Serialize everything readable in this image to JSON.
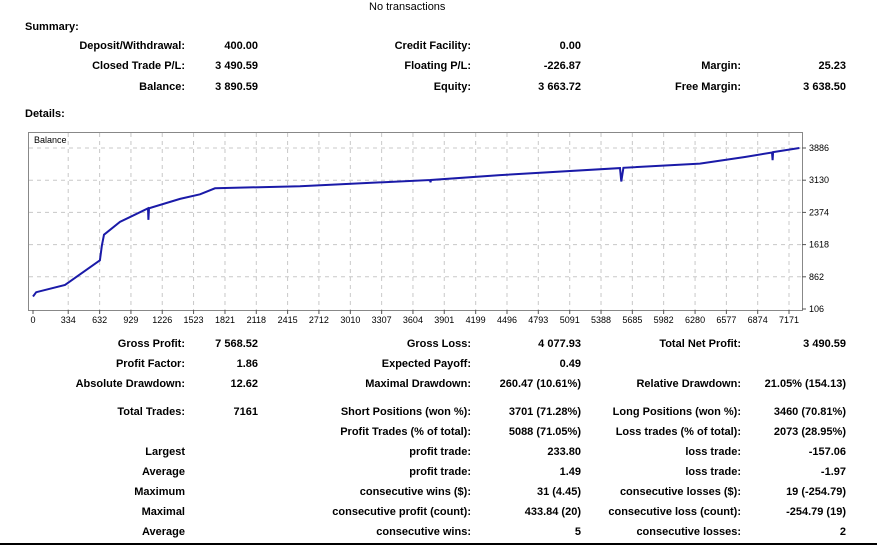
{
  "header": {
    "top_text": "No transactions"
  },
  "summary": {
    "title": "Summary:",
    "rows": [
      [
        {
          "label": "Deposit/Withdrawal:",
          "value": "400.00"
        },
        {
          "label": "Credit Facility:",
          "value": "0.00"
        },
        {
          "label": "",
          "value": ""
        }
      ],
      [
        {
          "label": "Closed Trade P/L:",
          "value": "3 490.59"
        },
        {
          "label": "Floating P/L:",
          "value": "-226.87"
        },
        {
          "label": "Margin:",
          "value": "25.23"
        }
      ],
      [
        {
          "label": "Balance:",
          "value": "3 890.59"
        },
        {
          "label": "Equity:",
          "value": "3 663.72"
        },
        {
          "label": "Free Margin:",
          "value": "3 638.50"
        }
      ]
    ]
  },
  "details": {
    "title": "Details:",
    "rows": [
      [
        {
          "label": "Gross Profit:",
          "value": "7 568.52"
        },
        {
          "label": "Gross Loss:",
          "value": "4 077.93"
        },
        {
          "label": "Total Net Profit:",
          "value": "3 490.59"
        }
      ],
      [
        {
          "label": "Profit Factor:",
          "value": "1.86"
        },
        {
          "label": "Expected Payoff:",
          "value": "0.49"
        },
        {
          "label": "",
          "value": ""
        }
      ],
      [
        {
          "label": "Absolute Drawdown:",
          "value": "12.62"
        },
        {
          "label": "Maximal Drawdown:",
          "value": "260.47 (10.61%)"
        },
        {
          "label": "Relative Drawdown:",
          "value": "21.05% (154.13)"
        }
      ],
      [
        {
          "label": "Total Trades:",
          "value": "7161"
        },
        {
          "label": "Short Positions (won %):",
          "value": "3701 (71.28%)"
        },
        {
          "label": "Long Positions (won %):",
          "value": "3460 (70.81%)"
        }
      ],
      [
        {
          "label": "",
          "value": ""
        },
        {
          "label": "Profit Trades (% of total):",
          "value": "5088 (71.05%)"
        },
        {
          "label": "Loss trades (% of total):",
          "value": "2073 (28.95%)"
        }
      ],
      [
        {
          "label": "Largest",
          "value": ""
        },
        {
          "label": "profit trade:",
          "value": "233.80"
        },
        {
          "label": "loss trade:",
          "value": "-157.06"
        }
      ],
      [
        {
          "label": "Average",
          "value": ""
        },
        {
          "label": "profit trade:",
          "value": "1.49"
        },
        {
          "label": "loss trade:",
          "value": "-1.97"
        }
      ],
      [
        {
          "label": "Maximum",
          "value": ""
        },
        {
          "label": "consecutive wins ($):",
          "value": "31 (4.45)"
        },
        {
          "label": "consecutive losses ($):",
          "value": "19 (-254.79)"
        }
      ],
      [
        {
          "label": "Maximal",
          "value": ""
        },
        {
          "label": "consecutive profit (count):",
          "value": "433.84 (20)"
        },
        {
          "label": "consecutive loss (count):",
          "value": "-254.79 (19)"
        }
      ],
      [
        {
          "label": "Average",
          "value": ""
        },
        {
          "label": "consecutive wins:",
          "value": "5"
        },
        {
          "label": "consecutive losses:",
          "value": "2"
        }
      ]
    ]
  },
  "chart_data": {
    "type": "line",
    "title": "Balance",
    "line_color": "#1a1aa8",
    "grid": true,
    "xlim": [
      0,
      7280
    ],
    "ylim": [
      106,
      3886
    ],
    "x_ticks": [
      0,
      334,
      632,
      929,
      1226,
      1523,
      1821,
      2118,
      2415,
      2712,
      3010,
      3307,
      3604,
      3901,
      4199,
      4496,
      4793,
      5091,
      5388,
      5685,
      5982,
      6280,
      6577,
      6874,
      7171
    ],
    "y_ticks": [
      106,
      862,
      1618,
      2374,
      3130,
      3886
    ],
    "series": [
      {
        "points": [
          [
            0,
            400
          ],
          [
            30,
            500
          ],
          [
            304,
            670
          ],
          [
            635,
            1250
          ],
          [
            654,
            1600
          ],
          [
            673,
            1850
          ],
          [
            825,
            2150
          ],
          [
            1091,
            2470
          ],
          [
            1095,
            2200
          ],
          [
            1100,
            2470
          ],
          [
            1394,
            2690
          ],
          [
            1584,
            2800
          ],
          [
            1726,
            2940
          ],
          [
            2533,
            2990
          ],
          [
            3766,
            3135
          ],
          [
            3770,
            3080
          ],
          [
            3775,
            3135
          ],
          [
            4430,
            3250
          ],
          [
            5568,
            3415
          ],
          [
            5580,
            3100
          ],
          [
            5600,
            3420
          ],
          [
            6326,
            3520
          ],
          [
            6753,
            3674
          ],
          [
            7010,
            3780
          ],
          [
            7015,
            3600
          ],
          [
            7020,
            3790
          ],
          [
            7270,
            3886
          ]
        ]
      }
    ]
  }
}
